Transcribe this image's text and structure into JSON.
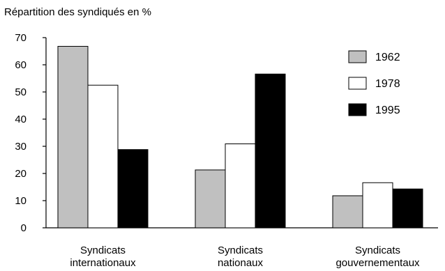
{
  "chart_data": {
    "type": "bar",
    "title": "",
    "ylabel": "Répartition des syndiqués en %",
    "xlabel": "",
    "ylim": [
      0,
      70
    ],
    "yticks": [
      0,
      10,
      20,
      30,
      40,
      50,
      60,
      70
    ],
    "grid": false,
    "legend_position": "top-right",
    "categories": [
      [
        "Syndicats",
        "internationaux"
      ],
      [
        "Syndicats",
        "nationaux"
      ],
      [
        "Syndicats",
        "gouvernementaux"
      ]
    ],
    "series": [
      {
        "name": "1962",
        "color": "#c0c0c0",
        "values": [
          66.8,
          21.3,
          11.8
        ]
      },
      {
        "name": "1978",
        "color": "#ffffff",
        "values": [
          52.5,
          30.9,
          16.6
        ]
      },
      {
        "name": "1995",
        "color": "#000000",
        "values": [
          28.8,
          56.6,
          14.3
        ]
      }
    ]
  }
}
